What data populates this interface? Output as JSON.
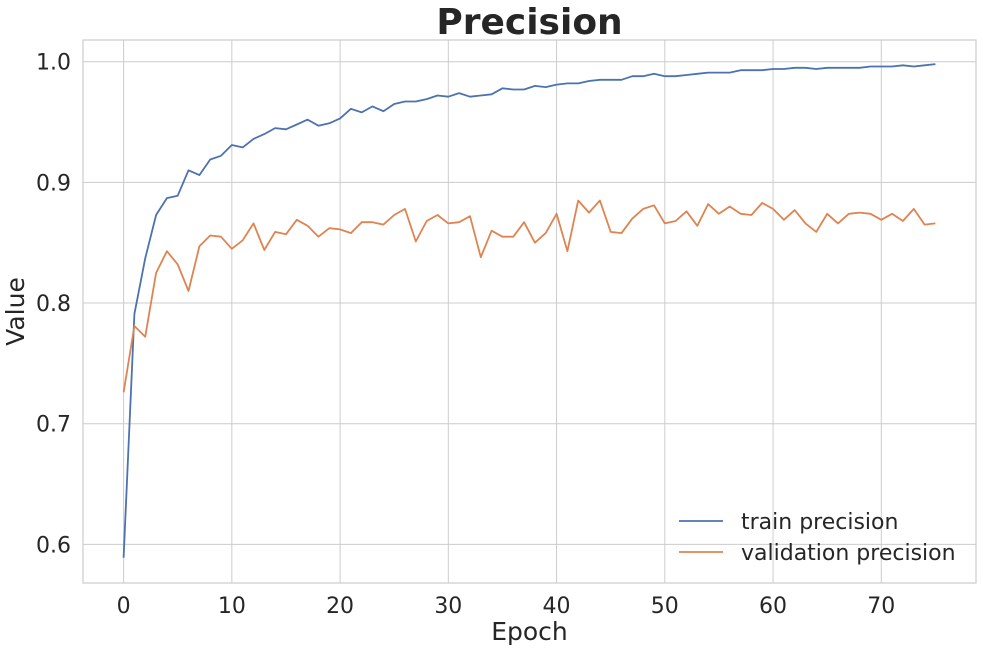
{
  "chart_data": {
    "type": "line",
    "title": "Precision",
    "xlabel": "Epoch",
    "ylabel": "Value",
    "xlim": [
      -3.75,
      78.75
    ],
    "ylim": [
      0.568,
      1.018
    ],
    "xticks": [
      0,
      10,
      20,
      30,
      40,
      50,
      60,
      70
    ],
    "yticks": [
      0.6,
      0.7,
      0.8,
      0.9,
      1.0
    ],
    "ytick_labels": [
      "0.6",
      "0.7",
      "0.8",
      "0.9",
      "1.0"
    ],
    "grid": true,
    "legend_position": "lower-right",
    "x": [
      0,
      1,
      2,
      3,
      4,
      5,
      6,
      7,
      8,
      9,
      10,
      11,
      12,
      13,
      14,
      15,
      16,
      17,
      18,
      19,
      20,
      21,
      22,
      23,
      24,
      25,
      26,
      27,
      28,
      29,
      30,
      31,
      32,
      33,
      34,
      35,
      36,
      37,
      38,
      39,
      40,
      41,
      42,
      43,
      44,
      45,
      46,
      47,
      48,
      49,
      50,
      51,
      52,
      53,
      54,
      55,
      56,
      57,
      58,
      59,
      60,
      61,
      62,
      63,
      64,
      65,
      66,
      67,
      68,
      69,
      70,
      71,
      72,
      73,
      74,
      75
    ],
    "series": [
      {
        "name": "train precision",
        "color": "#4c72b0",
        "values": [
          0.589,
          0.791,
          0.837,
          0.873,
          0.887,
          0.889,
          0.91,
          0.906,
          0.919,
          0.922,
          0.931,
          0.929,
          0.936,
          0.94,
          0.945,
          0.944,
          0.948,
          0.952,
          0.947,
          0.949,
          0.953,
          0.961,
          0.958,
          0.963,
          0.959,
          0.965,
          0.967,
          0.967,
          0.969,
          0.972,
          0.971,
          0.974,
          0.971,
          0.972,
          0.973,
          0.978,
          0.977,
          0.977,
          0.98,
          0.979,
          0.981,
          0.982,
          0.982,
          0.984,
          0.985,
          0.985,
          0.985,
          0.988,
          0.988,
          0.99,
          0.988,
          0.988,
          0.989,
          0.99,
          0.991,
          0.991,
          0.991,
          0.993,
          0.993,
          0.993,
          0.994,
          0.994,
          0.995,
          0.995,
          0.994,
          0.995,
          0.995,
          0.995,
          0.995,
          0.996,
          0.996,
          0.996,
          0.997,
          0.996,
          0.997,
          0.998
        ]
      },
      {
        "name": "validation precision",
        "color": "#dd8452",
        "values": [
          0.726,
          0.781,
          0.772,
          0.825,
          0.843,
          0.832,
          0.81,
          0.847,
          0.856,
          0.855,
          0.845,
          0.852,
          0.866,
          0.844,
          0.859,
          0.857,
          0.869,
          0.864,
          0.855,
          0.862,
          0.861,
          0.858,
          0.867,
          0.867,
          0.865,
          0.873,
          0.878,
          0.851,
          0.868,
          0.873,
          0.866,
          0.867,
          0.872,
          0.838,
          0.86,
          0.855,
          0.855,
          0.867,
          0.85,
          0.858,
          0.874,
          0.843,
          0.885,
          0.875,
          0.885,
          0.859,
          0.858,
          0.87,
          0.878,
          0.881,
          0.866,
          0.868,
          0.876,
          0.864,
          0.882,
          0.874,
          0.88,
          0.874,
          0.873,
          0.883,
          0.878,
          0.869,
          0.877,
          0.866,
          0.859,
          0.874,
          0.866,
          0.874,
          0.875,
          0.874,
          0.869,
          0.874,
          0.868,
          0.878,
          0.865,
          0.866
        ]
      }
    ]
  }
}
